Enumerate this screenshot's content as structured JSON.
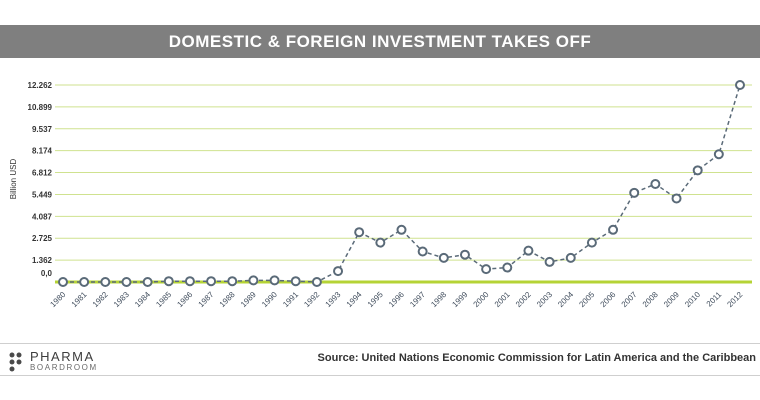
{
  "title": "DOMESTIC & FOREIGN INVESTMENT TAKES OFF",
  "source": "Source: United Nations Economic Commission for Latin America and the Caribbean",
  "logo": {
    "top": "PHARMA",
    "bottom": "BOARDROOM"
  },
  "colors": {
    "grid": "#cfe28f",
    "baseline": "#b5d335",
    "line": "#5a6a78",
    "marker_fill": "#ffffff",
    "title_bar": "#7f7f7f"
  },
  "chart_data": {
    "type": "line",
    "ylabel": "Billion USD",
    "xlabel": "",
    "ylim": [
      0,
      12.262
    ],
    "y_ticks": [
      "0,0",
      "1.362",
      "2.725",
      "4.087",
      "5.449",
      "6.812",
      "8.174",
      "9.537",
      "10.899",
      "12.262"
    ],
    "y_tick_values": [
      0,
      1.362,
      2.725,
      4.087,
      5.449,
      6.812,
      8.174,
      9.537,
      10.899,
      12.262
    ],
    "grid": true,
    "categories": [
      "1980",
      "1981",
      "1982",
      "1983",
      "1984",
      "1985",
      "1986",
      "1987",
      "1988",
      "1989",
      "1990",
      "1991",
      "1992",
      "1993",
      "1994",
      "1995",
      "1996",
      "1997",
      "1998",
      "1999",
      "2000",
      "2001",
      "2002",
      "2003",
      "2004",
      "2005",
      "2006",
      "2007",
      "2008",
      "2009",
      "2010",
      "2011",
      "2012"
    ],
    "values": [
      0,
      0,
      0,
      0,
      0,
      0.05,
      0.05,
      0.05,
      0.05,
      0.1,
      0.1,
      0.05,
      0.0,
      0.68,
      3.1,
      2.45,
      3.25,
      1.9,
      1.5,
      1.7,
      0.8,
      0.9,
      1.95,
      1.25,
      1.5,
      2.45,
      3.25,
      5.55,
      6.1,
      5.2,
      6.95,
      7.95,
      12.262
    ]
  }
}
